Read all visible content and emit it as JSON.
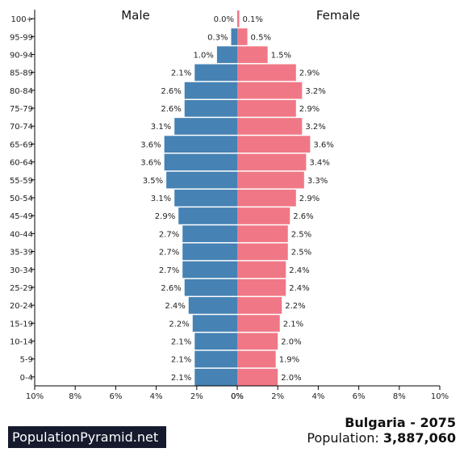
{
  "brand": "PopulationPyramid.net",
  "country_title": "Bulgaria - 2075",
  "population_label": "Population:",
  "population_value": "3,887,060",
  "colors": {
    "male": "#4682b4",
    "female": "#f07886",
    "axis": "#000000"
  },
  "chart_data": {
    "type": "bar",
    "orientation": "horizontal-diverging",
    "left_title": "Male",
    "right_title": "Female",
    "categories": [
      "100+",
      "95-99",
      "90-94",
      "85-89",
      "80-84",
      "75-79",
      "70-74",
      "65-69",
      "60-64",
      "55-59",
      "50-54",
      "45-49",
      "40-44",
      "35-39",
      "30-34",
      "25-29",
      "20-24",
      "15-19",
      "10-14",
      "5-9",
      "0-4"
    ],
    "series": [
      {
        "name": "Male",
        "values": [
          0.0,
          0.3,
          1.0,
          2.1,
          2.6,
          2.6,
          3.1,
          3.6,
          3.6,
          3.5,
          3.1,
          2.9,
          2.7,
          2.7,
          2.7,
          2.6,
          2.4,
          2.2,
          2.1,
          2.1,
          2.1
        ],
        "labels": [
          "0.0%",
          "0.3%",
          "1.0%",
          "2.1%",
          "2.6%",
          "2.6%",
          "3.1%",
          "3.6%",
          "3.6%",
          "3.5%",
          "3.1%",
          "2.9%",
          "2.7%",
          "2.7%",
          "2.7%",
          "2.6%",
          "2.4%",
          "2.2%",
          "2.1%",
          "2.1%",
          "2.1%"
        ]
      },
      {
        "name": "Female",
        "values": [
          0.1,
          0.5,
          1.5,
          2.9,
          3.2,
          2.9,
          3.2,
          3.6,
          3.4,
          3.3,
          2.9,
          2.6,
          2.5,
          2.5,
          2.4,
          2.4,
          2.2,
          2.1,
          2.0,
          1.9,
          2.0
        ],
        "labels": [
          "0.1%",
          "0.5%",
          "1.5%",
          "2.9%",
          "3.2%",
          "2.9%",
          "3.2%",
          "3.6%",
          "3.4%",
          "3.3%",
          "2.9%",
          "2.6%",
          "2.5%",
          "2.5%",
          "2.4%",
          "2.4%",
          "2.2%",
          "2.1%",
          "2.0%",
          "1.9%",
          "2.0%"
        ]
      }
    ],
    "xlim": [
      0,
      10
    ],
    "xticks_left": [
      "10%",
      "8%",
      "6%",
      "4%",
      "2%",
      "0%"
    ],
    "xticks_right": [
      "0%",
      "2%",
      "4%",
      "6%",
      "8%",
      "10%"
    ],
    "grid": false
  }
}
